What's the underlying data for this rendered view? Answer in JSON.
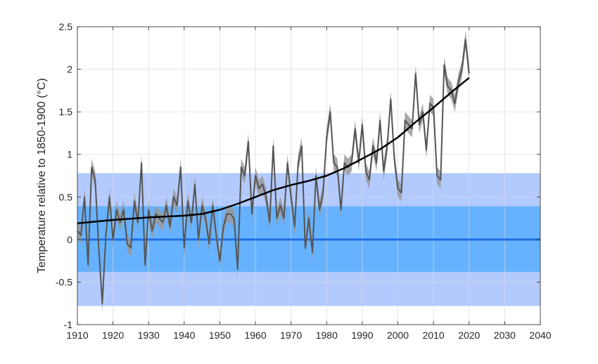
{
  "chart_data": {
    "type": "line",
    "title": "",
    "xlabel": "",
    "ylabel": "Temperature relative to 1850-1900 (°C)",
    "xlim": [
      1910,
      2040
    ],
    "ylim": [
      -1,
      2.5
    ],
    "grid": true,
    "legend": "none",
    "x_ticks": [
      "1910",
      "1920",
      "1930",
      "1940",
      "1950",
      "1960",
      "1970",
      "1980",
      "1990",
      "2000",
      "2010",
      "2020",
      "2030",
      "2040"
    ],
    "y_ticks": [
      "-1",
      "-0.5",
      "0",
      "0.5",
      "1",
      "1.5",
      "2",
      "2.5"
    ],
    "bands": [
      {
        "name": "outer",
        "from": -0.78,
        "to": 0.78,
        "color": "#b3caff"
      },
      {
        "name": "inner",
        "from": -0.38,
        "to": 0.39,
        "color": "#66b2ff"
      }
    ],
    "baseline": {
      "y": 0,
      "color": "#1f6fe5"
    },
    "uncertainty_half_width": 0.1,
    "series": [
      {
        "color": "#555555",
        "fill_color": "#999999",
        "x": [
          1910,
          1911,
          1912,
          1913,
          1914,
          1915,
          1916,
          1917,
          1918,
          1919,
          1920,
          1921,
          1922,
          1923,
          1924,
          1925,
          1926,
          1927,
          1928,
          1929,
          1930,
          1931,
          1932,
          1933,
          1934,
          1935,
          1936,
          1937,
          1938,
          1939,
          1940,
          1941,
          1942,
          1943,
          1944,
          1945,
          1946,
          1947,
          1948,
          1949,
          1950,
          1951,
          1952,
          1953,
          1954,
          1955,
          1956,
          1957,
          1958,
          1959,
          1960,
          1961,
          1962,
          1963,
          1964,
          1965,
          1966,
          1967,
          1968,
          1969,
          1970,
          1971,
          1972,
          1973,
          1974,
          1975,
          1976,
          1977,
          1978,
          1979,
          1980,
          1981,
          1982,
          1983,
          1984,
          1985,
          1986,
          1987,
          1988,
          1989,
          1990,
          1991,
          1992,
          1993,
          1994,
          1995,
          1996,
          1997,
          1998,
          1999,
          2000,
          2001,
          2002,
          2003,
          2004,
          2005,
          2006,
          2007,
          2008,
          2009,
          2010,
          2011,
          2012,
          2013,
          2014,
          2015,
          2016,
          2017,
          2018,
          2019,
          2020
        ],
        "y": [
          0.1,
          0.05,
          0.5,
          -0.3,
          0.85,
          0.7,
          -0.1,
          -0.75,
          0.05,
          0.5,
          0.0,
          0.35,
          0.2,
          0.35,
          -0.05,
          -0.1,
          0.45,
          0.2,
          0.9,
          -0.3,
          0.35,
          0.1,
          0.3,
          0.25,
          0.2,
          0.4,
          0.15,
          0.5,
          0.4,
          0.85,
          -0.1,
          0.45,
          0.2,
          0.65,
          0.0,
          0.4,
          0.25,
          -0.05,
          0.4,
          0.05,
          -0.25,
          0.15,
          0.3,
          0.3,
          0.25,
          -0.35,
          0.85,
          0.75,
          1.15,
          0.3,
          0.75,
          0.6,
          0.65,
          0.5,
          0.2,
          1.1,
          0.25,
          0.4,
          0.25,
          0.9,
          0.5,
          0.15,
          0.9,
          1.1,
          -0.1,
          0.25,
          -0.15,
          0.75,
          0.35,
          0.55,
          1.2,
          1.5,
          0.9,
          0.85,
          0.35,
          0.9,
          0.85,
          0.9,
          1.3,
          0.9,
          1.35,
          0.8,
          0.7,
          1.1,
          0.9,
          1.4,
          0.8,
          1.1,
          1.65,
          0.95,
          0.6,
          0.55,
          1.4,
          1.35,
          1.3,
          1.95,
          1.35,
          1.5,
          1.05,
          1.6,
          1.55,
          0.75,
          0.7,
          2.05,
          1.8,
          1.75,
          1.6,
          1.85,
          2.0,
          2.35,
          1.95
        ]
      },
      {
        "color": "#000000",
        "x": [
          1910,
          1915,
          1920,
          1925,
          1930,
          1935,
          1940,
          1945,
          1950,
          1955,
          1960,
          1965,
          1970,
          1975,
          1980,
          1985,
          1990,
          1995,
          2000,
          2005,
          2010,
          2015,
          2020
        ],
        "y": [
          0.19,
          0.21,
          0.23,
          0.245,
          0.26,
          0.27,
          0.28,
          0.3,
          0.35,
          0.42,
          0.5,
          0.58,
          0.64,
          0.69,
          0.75,
          0.84,
          0.95,
          1.06,
          1.2,
          1.38,
          1.55,
          1.73,
          1.9
        ]
      }
    ]
  }
}
